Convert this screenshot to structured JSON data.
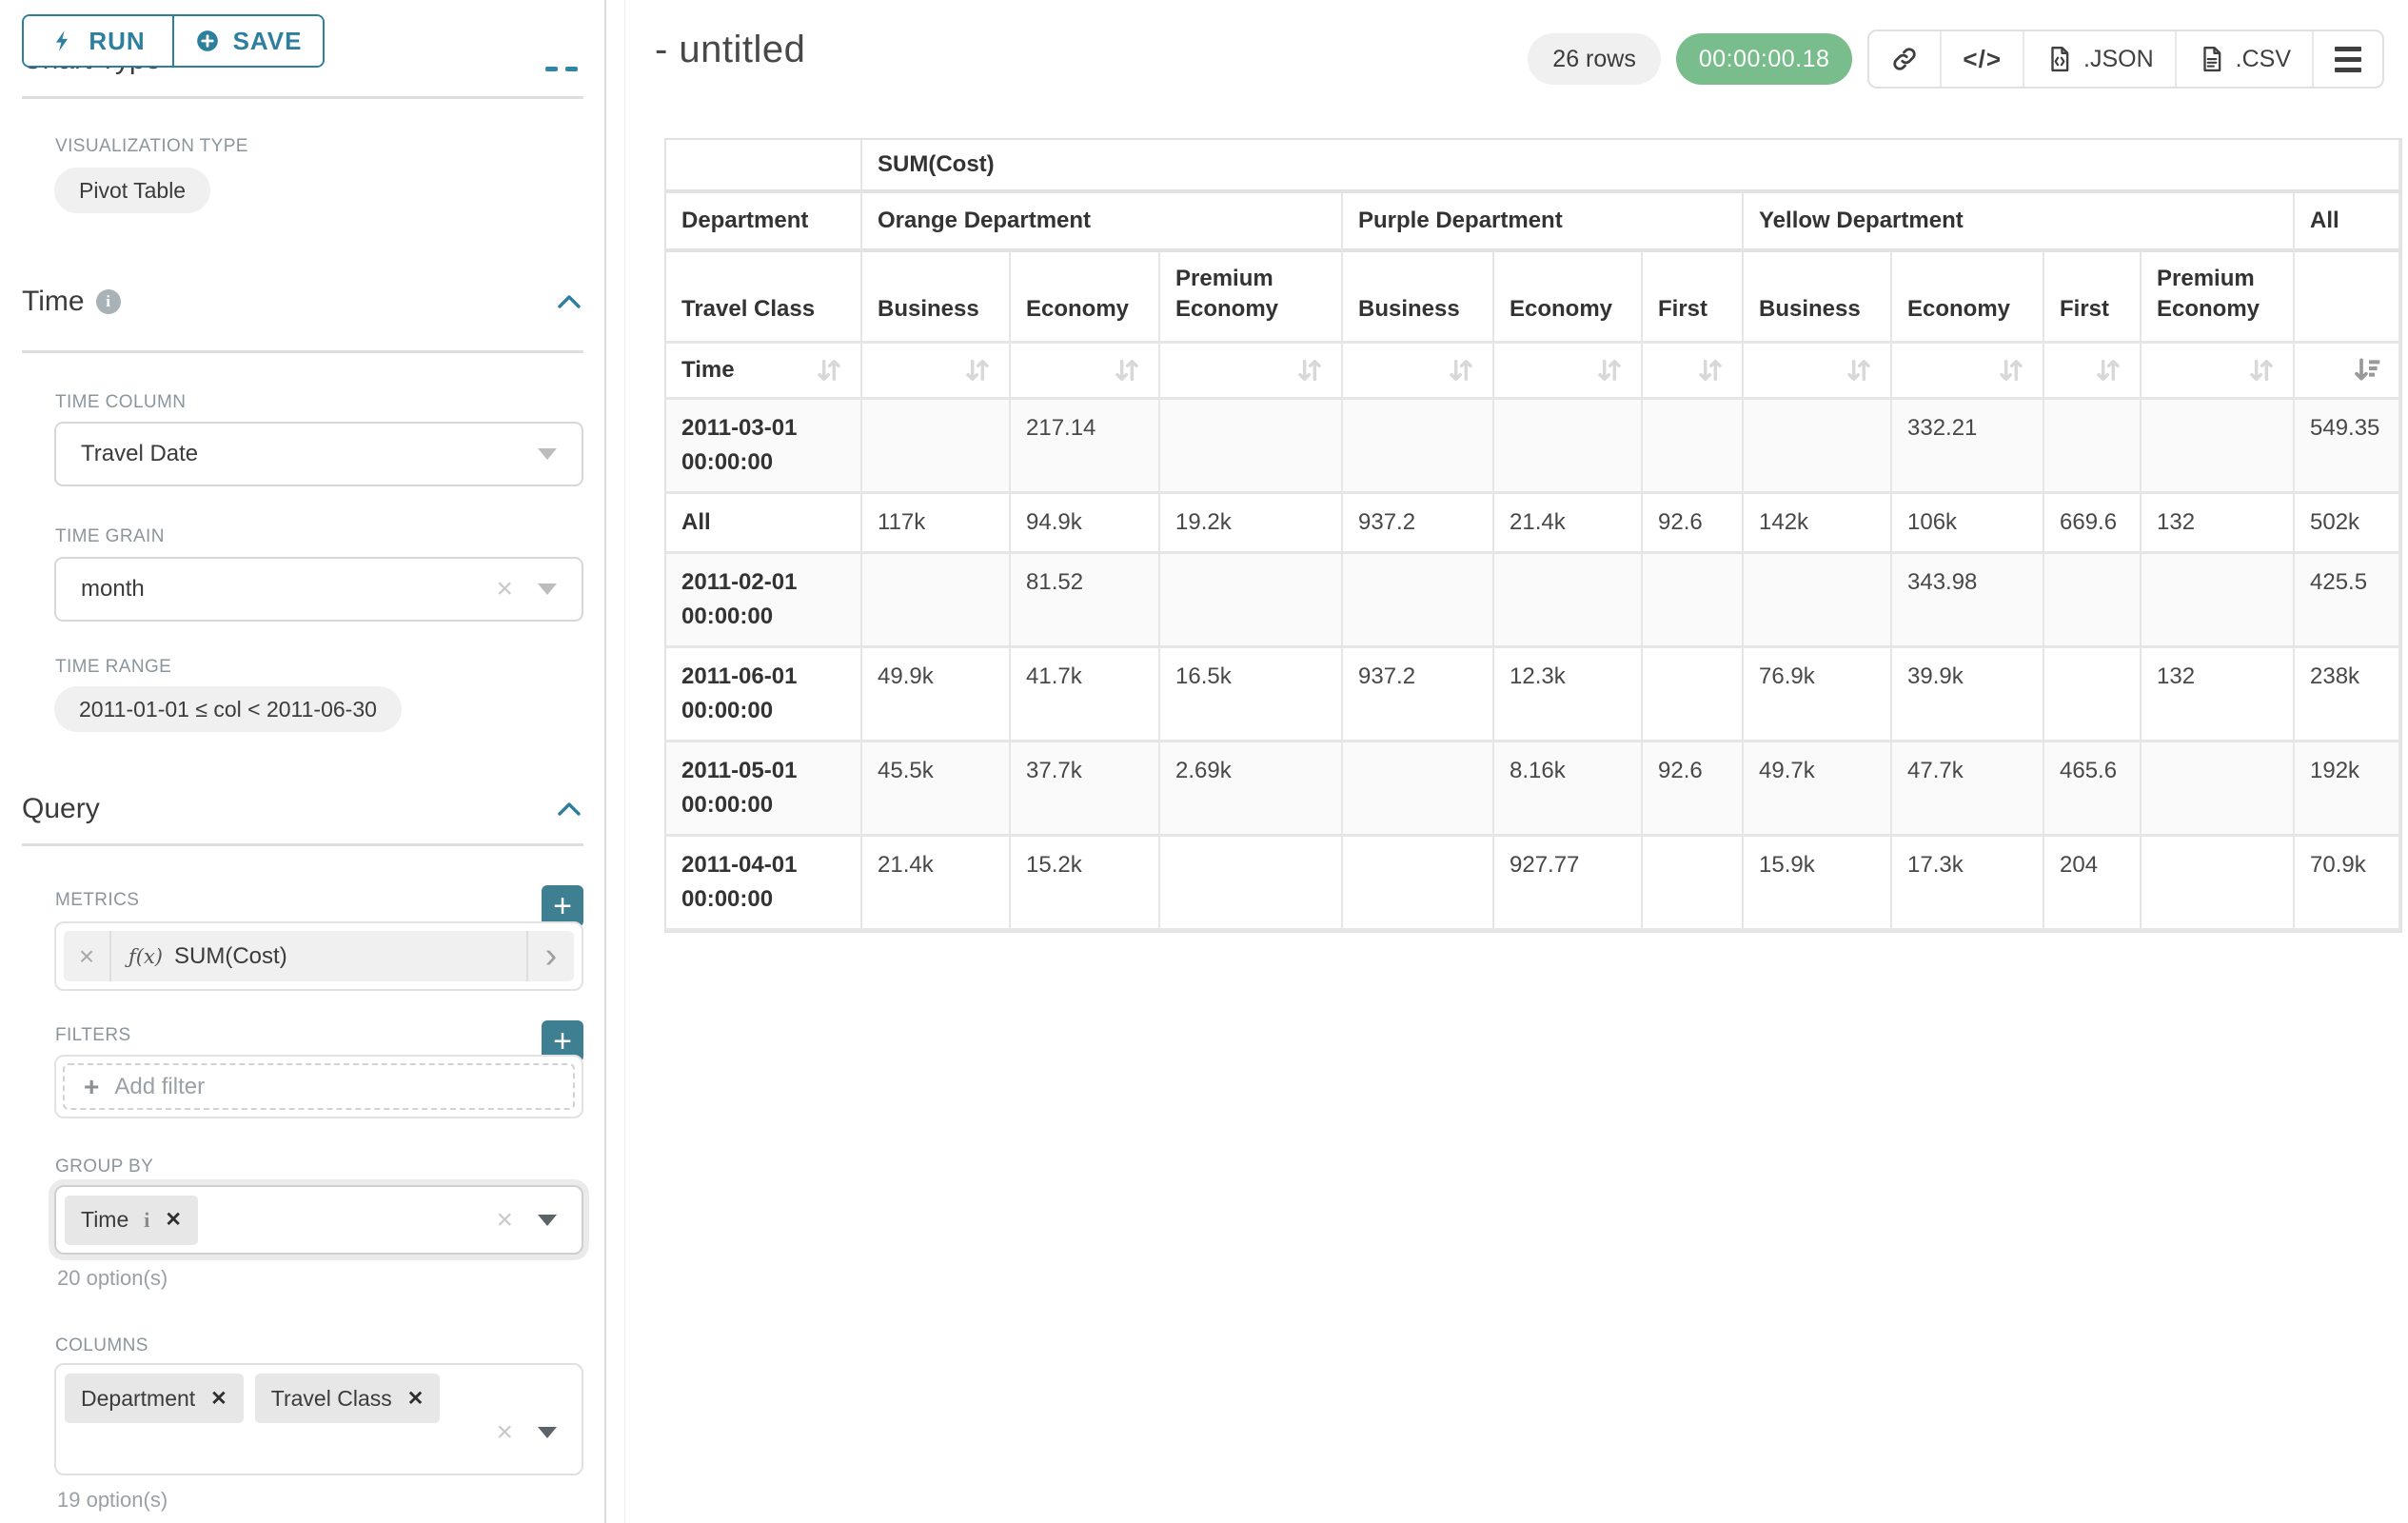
{
  "colors": {
    "accent": "#2e7f9e",
    "plus_button": "#3f7f92",
    "timer_green": "#7abd8c"
  },
  "toolbar": {
    "run_label": "RUN",
    "save_label": "SAVE"
  },
  "panel": {
    "clipped_section": "Chart Type",
    "viz_type_label": "VISUALIZATION TYPE",
    "viz_type_value": "Pivot Table",
    "time_section": "Time",
    "time_column_label": "TIME COLUMN",
    "time_column_value": "Travel Date",
    "time_grain_label": "TIME GRAIN",
    "time_grain_value": "month",
    "time_range_label": "TIME RANGE",
    "time_range_value": "2011-01-01 ≤ col < 2011-06-30",
    "query_section": "Query",
    "metrics_label": "METRICS",
    "metric_fx": "ƒ(x)",
    "metric_value": "SUM(Cost)",
    "filters_label": "FILTERS",
    "add_filter_label": "Add filter",
    "group_by_label": "GROUP BY",
    "group_by_chip": "Time",
    "group_by_options": "20 option(s)",
    "columns_label": "COLUMNS",
    "columns_chips": [
      "Department",
      "Travel Class"
    ],
    "columns_options": "19 option(s)"
  },
  "header": {
    "title": "- untitled",
    "row_count": "26 rows",
    "timer": "00:00:00.18",
    "json_label": ".JSON",
    "csv_label": ".CSV"
  },
  "table": {
    "metric_header": "SUM(Cost)",
    "row_dim_label": "Department",
    "row_dim2_label": "Travel Class",
    "time_label": "Time",
    "groups": [
      {
        "label": "Orange Department",
        "cols": [
          "Business",
          "Economy",
          "Premium Economy"
        ]
      },
      {
        "label": "Purple Department",
        "cols": [
          "Business",
          "Economy",
          "First"
        ]
      },
      {
        "label": "Yellow Department",
        "cols": [
          "Business",
          "Economy",
          "First",
          "Premium Economy"
        ]
      },
      {
        "label": "All",
        "cols": [
          ""
        ]
      }
    ],
    "rows": [
      {
        "header": "2011-03-01 00:00:00",
        "cells": [
          "",
          "217.14",
          "",
          "",
          "",
          "",
          "",
          "332.21",
          "",
          "",
          "549.35"
        ]
      },
      {
        "header": "All",
        "cells": [
          "117k",
          "94.9k",
          "19.2k",
          "937.2",
          "21.4k",
          "92.6",
          "142k",
          "106k",
          "669.6",
          "132",
          "502k"
        ]
      },
      {
        "header": "2011-02-01 00:00:00",
        "cells": [
          "",
          "81.52",
          "",
          "",
          "",
          "",
          "",
          "343.98",
          "",
          "",
          "425.5"
        ]
      },
      {
        "header": "2011-06-01 00:00:00",
        "cells": [
          "49.9k",
          "41.7k",
          "16.5k",
          "937.2",
          "12.3k",
          "",
          "76.9k",
          "39.9k",
          "",
          "132",
          "238k"
        ]
      },
      {
        "header": "2011-05-01 00:00:00",
        "cells": [
          "45.5k",
          "37.7k",
          "2.69k",
          "",
          "8.16k",
          "92.6",
          "49.7k",
          "47.7k",
          "465.6",
          "",
          "192k"
        ]
      },
      {
        "header": "2011-04-01 00:00:00",
        "cells": [
          "21.4k",
          "15.2k",
          "",
          "",
          "927.77",
          "",
          "15.9k",
          "17.3k",
          "204",
          "",
          "70.9k"
        ]
      }
    ]
  }
}
